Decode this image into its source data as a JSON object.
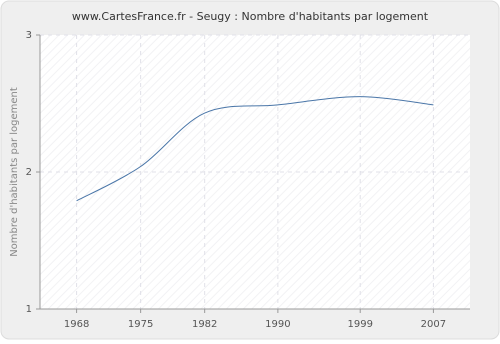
{
  "chart_data": {
    "type": "line",
    "title": "www.CartesFrance.fr - Seugy : Nombre d'habitants par logement",
    "y_label": "Nombre d'habitants par logement",
    "x": [
      1968,
      1975,
      1982,
      1990,
      1999,
      2007
    ],
    "series": [
      {
        "name": "Nombre d'habitants par logement",
        "color": "#4a76a8",
        "values": [
          1.79,
          2.04,
          2.43,
          2.49,
          2.55,
          2.49
        ]
      }
    ],
    "xlim": [
      1964,
      2011
    ],
    "xticks": [
      1968,
      1975,
      1982,
      1990,
      1999,
      2007
    ],
    "ylim": [
      1,
      3
    ],
    "yticks": [
      1,
      2,
      3
    ],
    "grid": true
  }
}
